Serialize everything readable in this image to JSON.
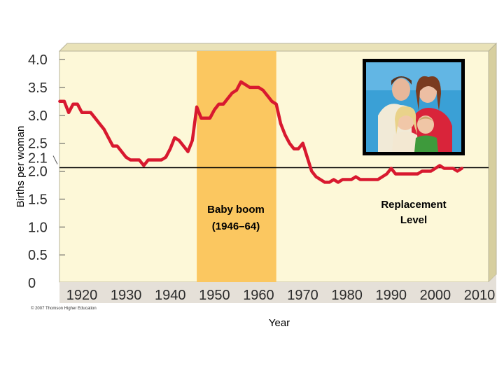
{
  "chart_data": {
    "type": "line",
    "title": "",
    "xlabel": "Year",
    "ylabel": "Births per woman",
    "xlim": [
      1915,
      2010
    ],
    "ylim": [
      0,
      4.0
    ],
    "x_ticks": [
      "1920",
      "1930",
      "1940",
      "1950",
      "1960",
      "1970",
      "1980",
      "1990",
      "2000",
      "2010"
    ],
    "y_ticks": [
      "0",
      "0.5",
      "1.0",
      "1.5",
      "2.0",
      "2.1",
      "2.5",
      "3.0",
      "3.5",
      "4.0"
    ],
    "grid": false,
    "series": [
      {
        "color": "#d8192f",
        "x": [
          1915,
          1916,
          1917,
          1918,
          1919,
          1920,
          1921,
          1922,
          1923,
          1924,
          1925,
          1926,
          1927,
          1928,
          1929,
          1930,
          1931,
          1932,
          1933,
          1934,
          1935,
          1936,
          1937,
          1938,
          1939,
          1940,
          1941,
          1942,
          1943,
          1944,
          1945,
          1946,
          1947,
          1948,
          1949,
          1950,
          1951,
          1952,
          1953,
          1954,
          1955,
          1956,
          1957,
          1958,
          1959,
          1960,
          1961,
          1962,
          1963,
          1964,
          1965,
          1966,
          1967,
          1968,
          1969,
          1970,
          1971,
          1972,
          1973,
          1974,
          1975,
          1976,
          1977,
          1978,
          1979,
          1980,
          1981,
          1982,
          1983,
          1984,
          1985,
          1986,
          1987,
          1988,
          1989,
          1990,
          1991,
          1992,
          1993,
          1994,
          1995,
          1996,
          1997,
          1998,
          1999,
          2000,
          2001,
          2002,
          2003,
          2004,
          2005,
          2006
        ],
        "y": [
          3.25,
          3.25,
          3.05,
          3.2,
          3.2,
          3.05,
          3.05,
          3.05,
          2.95,
          2.85,
          2.75,
          2.6,
          2.45,
          2.45,
          2.35,
          2.25,
          2.2,
          2.2,
          2.2,
          2.1,
          2.2,
          2.2,
          2.2,
          2.2,
          2.25,
          2.4,
          2.6,
          2.55,
          2.45,
          2.35,
          2.55,
          3.15,
          2.95,
          2.95,
          2.95,
          3.1,
          3.2,
          3.2,
          3.3,
          3.4,
          3.45,
          3.6,
          3.55,
          3.5,
          3.5,
          3.5,
          3.45,
          3.35,
          3.25,
          3.2,
          2.85,
          2.65,
          2.5,
          2.4,
          2.4,
          2.5,
          2.25,
          2.0,
          1.9,
          1.85,
          1.8,
          1.8,
          1.85,
          1.8,
          1.85,
          1.85,
          1.85,
          1.9,
          1.85,
          1.85,
          1.85,
          1.85,
          1.85,
          1.9,
          1.95,
          2.05,
          1.95,
          1.95,
          1.95,
          1.95,
          1.95,
          1.95,
          2.0,
          2.0,
          2.0,
          2.05,
          2.1,
          2.05,
          2.05,
          2.05,
          2.0,
          2.05
        ]
      }
    ],
    "reference_line": {
      "label": "Replacement Level",
      "value": 2.1
    },
    "highlight_band": {
      "label_line1": "Baby boom",
      "label_line2": "(1946–64)",
      "x_start": 1946,
      "x_end": 1964,
      "color": "#fbc760"
    },
    "plot_background": "#fdf8d8",
    "credit": "© 2007 Thomson Higher Education"
  }
}
